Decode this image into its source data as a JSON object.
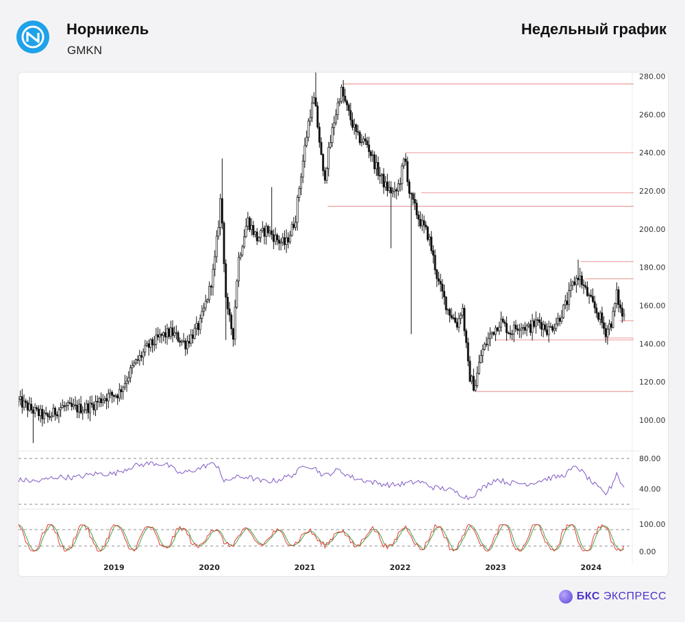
{
  "header": {
    "company": "Норникель",
    "ticker": "GMKN",
    "period": "Недельный график"
  },
  "brand": {
    "name_bold": "БКС",
    "name_light": "ЭКСПРЕСС"
  },
  "logo_icon": "nornickel-logo-icon",
  "colors": {
    "logo_bg": "#1fa2e8",
    "price": "#111111",
    "level_lines": "#e57373",
    "rsi_line": "#7e57c2",
    "stoch_k": "#e53935",
    "stoch_d": "#43a047",
    "brand": "#4b32c9"
  },
  "chart_data": [
    {
      "type": "candlestick",
      "ylim": [
        88,
        282
      ],
      "y_ticks": [
        "280.00",
        "260.00",
        "240.00",
        "220.00",
        "200.00",
        "180.00",
        "160.00",
        "140.00",
        "120.00",
        "100.00"
      ],
      "x_labels": [
        "2019",
        "2020",
        "2021",
        "2022",
        "2023",
        "2024"
      ],
      "anchors": [
        [
          2018.0,
          110
        ],
        [
          2018.15,
          105
        ],
        [
          2018.3,
          101
        ],
        [
          2018.45,
          107
        ],
        [
          2018.6,
          106
        ],
        [
          2018.75,
          107
        ],
        [
          2018.9,
          112
        ],
        [
          2019.05,
          114
        ],
        [
          2019.2,
          128
        ],
        [
          2019.35,
          138
        ],
        [
          2019.5,
          144
        ],
        [
          2019.6,
          146
        ],
        [
          2019.75,
          140
        ],
        [
          2019.9,
          150
        ],
        [
          2020.0,
          168
        ],
        [
          2020.05,
          180
        ],
        [
          2020.1,
          205
        ],
        [
          2020.12,
          218
        ],
        [
          2020.18,
          158
        ],
        [
          2020.25,
          145
        ],
        [
          2020.3,
          183
        ],
        [
          2020.4,
          205
        ],
        [
          2020.5,
          195
        ],
        [
          2020.6,
          200
        ],
        [
          2020.72,
          194
        ],
        [
          2020.8,
          192
        ],
        [
          2020.9,
          205
        ],
        [
          2020.95,
          225
        ],
        [
          2021.05,
          260
        ],
        [
          2021.1,
          268
        ],
        [
          2021.15,
          248
        ],
        [
          2021.2,
          225
        ],
        [
          2021.3,
          255
        ],
        [
          2021.38,
          273
        ],
        [
          2021.45,
          262
        ],
        [
          2021.55,
          248
        ],
        [
          2021.65,
          245
        ],
        [
          2021.75,
          232
        ],
        [
          2021.85,
          222
        ],
        [
          2021.95,
          218
        ],
        [
          2022.0,
          226
        ],
        [
          2022.05,
          238
        ],
        [
          2022.1,
          218
        ],
        [
          2022.2,
          205
        ],
        [
          2022.3,
          196
        ],
        [
          2022.4,
          172
        ],
        [
          2022.5,
          158
        ],
        [
          2022.6,
          150
        ],
        [
          2022.65,
          160
        ],
        [
          2022.72,
          124
        ],
        [
          2022.78,
          117
        ],
        [
          2022.85,
          135
        ],
        [
          2022.95,
          145
        ],
        [
          2023.05,
          152
        ],
        [
          2023.15,
          146
        ],
        [
          2023.25,
          150
        ],
        [
          2023.35,
          148
        ],
        [
          2023.45,
          152
        ],
        [
          2023.55,
          147
        ],
        [
          2023.65,
          152
        ],
        [
          2023.75,
          162
        ],
        [
          2023.8,
          170
        ],
        [
          2023.87,
          176
        ],
        [
          2023.92,
          170
        ],
        [
          2024.0,
          162
        ],
        [
          2024.1,
          153
        ],
        [
          2024.15,
          146
        ],
        [
          2024.22,
          152
        ],
        [
          2024.27,
          166
        ],
        [
          2024.32,
          155
        ]
      ],
      "levels": [
        {
          "y": 276,
          "x_start": 2021.4
        },
        {
          "y": 240,
          "x_start": 2022.05
        },
        {
          "y": 219,
          "x_start": 2022.22
        },
        {
          "y": 212,
          "x_start": 2021.24
        },
        {
          "y": 183,
          "x_start": 2023.89
        },
        {
          "y": 174,
          "x_start": 2023.94
        },
        {
          "y": 152,
          "x_start": 2024.3
        },
        {
          "y": 143,
          "x_start": 2024.13
        },
        {
          "y": 142,
          "x_start": 2022.99
        },
        {
          "y": 115,
          "x_start": 2022.78
        }
      ]
    },
    {
      "type": "line",
      "indicator": "RSI",
      "ylim": [
        20,
        85
      ],
      "y_ticks": [
        "80.00",
        "40.00"
      ],
      "reference_lines": [
        80,
        20
      ],
      "anchors": [
        [
          2018.0,
          52
        ],
        [
          2018.2,
          50
        ],
        [
          2018.4,
          56
        ],
        [
          2018.6,
          55
        ],
        [
          2018.8,
          60
        ],
        [
          2019.0,
          60
        ],
        [
          2019.2,
          70
        ],
        [
          2019.4,
          74
        ],
        [
          2019.55,
          72
        ],
        [
          2019.7,
          60
        ],
        [
          2019.9,
          67
        ],
        [
          2020.0,
          73
        ],
        [
          2020.1,
          70
        ],
        [
          2020.15,
          48
        ],
        [
          2020.25,
          55
        ],
        [
          2020.4,
          56
        ],
        [
          2020.55,
          50
        ],
        [
          2020.7,
          51
        ],
        [
          2020.9,
          60
        ],
        [
          2021.0,
          72
        ],
        [
          2021.1,
          68
        ],
        [
          2021.2,
          57
        ],
        [
          2021.35,
          65
        ],
        [
          2021.5,
          55
        ],
        [
          2021.6,
          52
        ],
        [
          2021.75,
          48
        ],
        [
          2021.9,
          45
        ],
        [
          2022.05,
          47
        ],
        [
          2022.2,
          50
        ],
        [
          2022.35,
          42
        ],
        [
          2022.5,
          40
        ],
        [
          2022.6,
          35
        ],
        [
          2022.72,
          28
        ],
        [
          2022.85,
          40
        ],
        [
          2023.0,
          53
        ],
        [
          2023.15,
          48
        ],
        [
          2023.35,
          47
        ],
        [
          2023.55,
          54
        ],
        [
          2023.7,
          57
        ],
        [
          2023.85,
          70
        ],
        [
          2024.0,
          50
        ],
        [
          2024.15,
          33
        ],
        [
          2024.22,
          45
        ],
        [
          2024.27,
          62
        ],
        [
          2024.32,
          45
        ]
      ]
    },
    {
      "type": "line",
      "indicator": "Stochastic",
      "ylim": [
        0,
        100
      ],
      "y_ticks": [
        "100.00",
        "0.00"
      ],
      "reference_lines": [
        80,
        20
      ],
      "series": [
        {
          "period": 0.34,
          "phase": 0.0
        },
        {
          "period": 0.34,
          "phase": 0.09
        }
      ]
    }
  ]
}
